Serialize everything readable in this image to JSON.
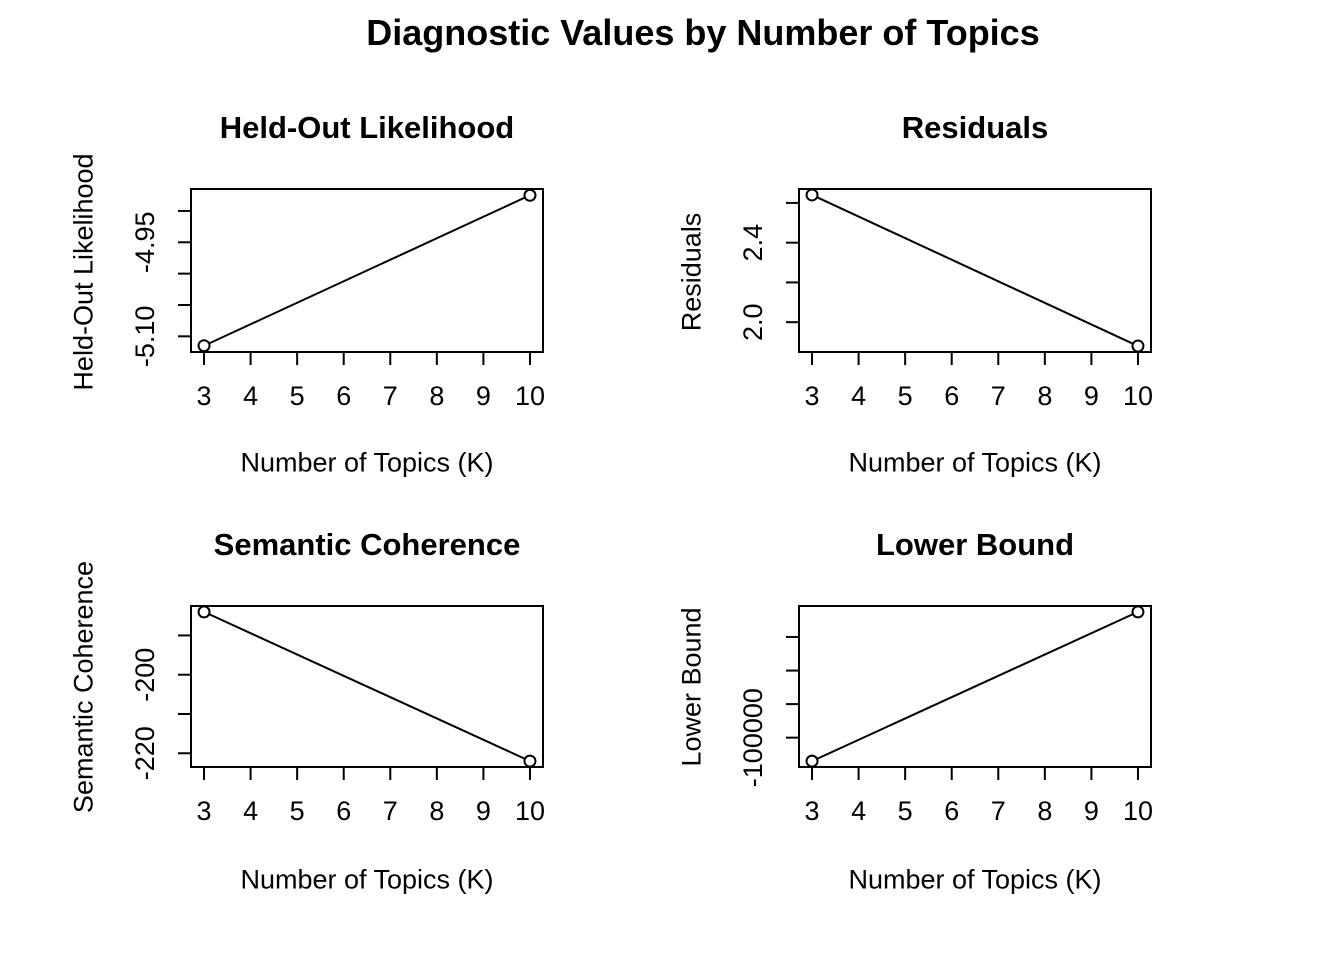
{
  "figure": {
    "title": "Diagnostic Values by Number of Topics",
    "background": "#ffffff",
    "foreground": "#000000"
  },
  "chart_data": [
    {
      "type": "line",
      "key": "heldout",
      "title": "Held-Out Likelihood",
      "xlabel": "Number of Topics (K)",
      "ylabel": "Held-Out Likelihood",
      "x": [
        3,
        10
      ],
      "y": [
        -5.115,
        -4.875
      ],
      "xlim": [
        2.72,
        10.28
      ],
      "ylim": [
        -5.125,
        -4.865
      ],
      "x_ticks": [
        3,
        4,
        5,
        6,
        7,
        8,
        9,
        10
      ],
      "x_tick_labels": [
        "3",
        "4",
        "5",
        "6",
        "7",
        "8",
        "9",
        "10"
      ],
      "y_ticks": [
        -5.1,
        -5.05,
        -5.0,
        -4.95,
        -4.9
      ],
      "y_tick_labels": [
        "-5.10",
        "",
        "",
        "-4.95",
        ""
      ],
      "marker": "open-circle",
      "line_style": "solid",
      "grid": false,
      "legend": "none",
      "color": "#000000"
    },
    {
      "type": "line",
      "key": "residuals",
      "title": "Residuals",
      "xlabel": "Number of Topics (K)",
      "ylabel": "Residuals",
      "x": [
        3,
        10
      ],
      "y": [
        2.64,
        1.88
      ],
      "xlim": [
        2.72,
        10.28
      ],
      "ylim": [
        1.85,
        2.67
      ],
      "x_ticks": [
        3,
        4,
        5,
        6,
        7,
        8,
        9,
        10
      ],
      "x_tick_labels": [
        "3",
        "4",
        "5",
        "6",
        "7",
        "8",
        "9",
        "10"
      ],
      "y_ticks": [
        2.0,
        2.2,
        2.4,
        2.6
      ],
      "y_tick_labels": [
        "2.0",
        "",
        "2.4",
        ""
      ],
      "marker": "open-circle",
      "line_style": "solid",
      "grid": false,
      "legend": "none",
      "color": "#000000"
    },
    {
      "type": "line",
      "key": "semcoh",
      "title": "Semantic Coherence",
      "xlabel": "Number of Topics (K)",
      "ylabel": "Semantic Coherence",
      "x": [
        3,
        10
      ],
      "y": [
        -184,
        -222
      ],
      "xlim": [
        2.72,
        10.28
      ],
      "ylim": [
        -223.5,
        -182.5
      ],
      "x_ticks": [
        3,
        4,
        5,
        6,
        7,
        8,
        9,
        10
      ],
      "x_tick_labels": [
        "3",
        "4",
        "5",
        "6",
        "7",
        "8",
        "9",
        "10"
      ],
      "y_ticks": [
        -220,
        -210,
        -200,
        -190
      ],
      "y_tick_labels": [
        "-220",
        "",
        "-200",
        ""
      ],
      "marker": "open-circle",
      "line_style": "solid",
      "grid": false,
      "legend": "none",
      "color": "#000000"
    },
    {
      "type": "line",
      "key": "lowerbound",
      "title": "Lower Bound",
      "xlabel": "Number of Topics (K)",
      "ylabel": "Lower Bound",
      "x": [
        3,
        10
      ],
      "y": [
        -114000,
        -25000
      ],
      "xlim": [
        2.72,
        10.28
      ],
      "ylim": [
        -117500,
        -21500
      ],
      "x_ticks": [
        3,
        4,
        5,
        6,
        7,
        8,
        9,
        10
      ],
      "x_tick_labels": [
        "3",
        "4",
        "5",
        "6",
        "7",
        "8",
        "9",
        "10"
      ],
      "y_ticks": [
        -100000,
        -80000,
        -60000,
        -40000
      ],
      "y_tick_labels": [
        "-100000",
        "",
        "",
        ""
      ],
      "marker": "open-circle",
      "line_style": "solid",
      "grid": false,
      "legend": "none",
      "color": "#000000"
    }
  ]
}
